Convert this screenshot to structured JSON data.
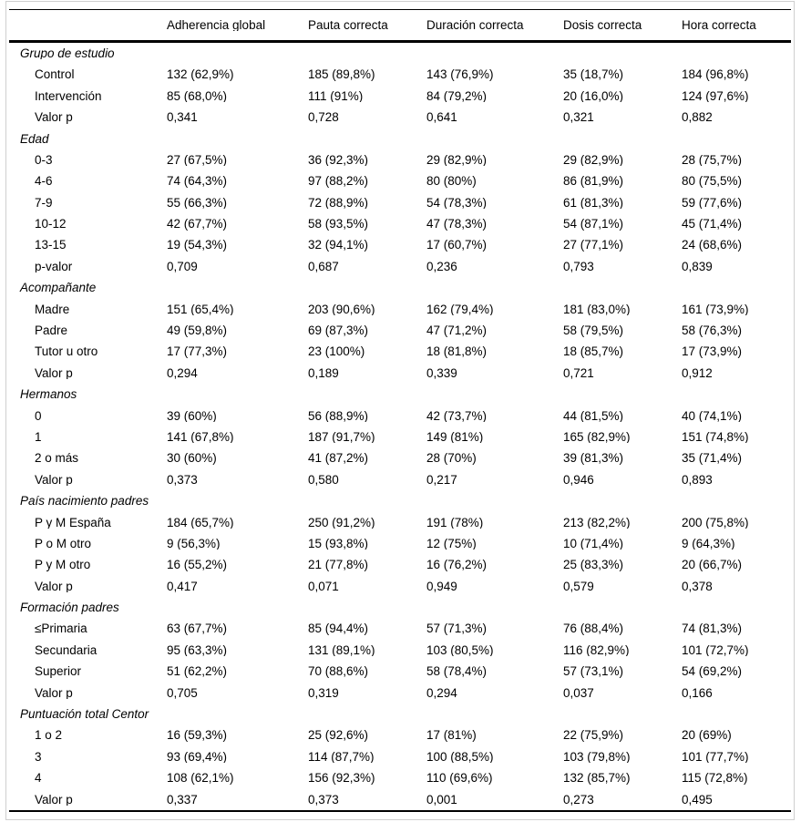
{
  "table": {
    "columns": [
      "",
      "Adherencia global",
      "Pauta correcta",
      "Duración correcta",
      "Dosis correcta",
      "Hora correcta"
    ],
    "sections": [
      {
        "title": "Grupo de estudio",
        "rows": [
          {
            "label": "Control",
            "cells": [
              "132 (62,9%)",
              "185 (89,8%)",
              "143 (76,9%)",
              "35 (18,7%)",
              "184 (96,8%)"
            ]
          },
          {
            "label": "Intervención",
            "cells": [
              "85 (68,0%)",
              "111 (91%)",
              "84 (79,2%)",
              "20 (16,0%)",
              "124 (97,6%)"
            ]
          },
          {
            "label": "Valor p",
            "cells": [
              "0,341",
              "0,728",
              "0,641",
              "0,321",
              "0,882"
            ]
          }
        ]
      },
      {
        "title": "Edad",
        "rows": [
          {
            "label": "0-3",
            "cells": [
              "27 (67,5%)",
              "36 (92,3%)",
              "29 (82,9%)",
              "29 (82,9%)",
              "28 (75,7%)"
            ]
          },
          {
            "label": "4-6",
            "cells": [
              "74 (64,3%)",
              "97 (88,2%)",
              "80 (80%)",
              "86 (81,9%)",
              "80 (75,5%)"
            ]
          },
          {
            "label": "7-9",
            "cells": [
              "55 (66,3%)",
              "72 (88,9%)",
              "54 (78,3%)",
              "61 (81,3%)",
              "59 (77,6%)"
            ]
          },
          {
            "label": "10-12",
            "cells": [
              "42 (67,7%)",
              "58 (93,5%)",
              "47 (78,3%)",
              "54 (87,1%)",
              "45 (71,4%)"
            ]
          },
          {
            "label": "13-15",
            "cells": [
              "19 (54,3%)",
              "32 (94,1%)",
              "17 (60,7%)",
              "27 (77,1%)",
              "24 (68,6%)"
            ]
          },
          {
            "label": "p-valor",
            "cells": [
              "0,709",
              "0,687",
              "0,236",
              "0,793",
              "0,839"
            ]
          }
        ]
      },
      {
        "title": "Acompañante",
        "rows": [
          {
            "label": "Madre",
            "cells": [
              "151 (65,4%)",
              "203 (90,6%)",
              "162 (79,4%)",
              "181 (83,0%)",
              "161 (73,9%)"
            ]
          },
          {
            "label": "Padre",
            "cells": [
              "49 (59,8%)",
              "69 (87,3%)",
              "47 (71,2%)",
              "58 (79,5%)",
              "58 (76,3%)"
            ]
          },
          {
            "label": "Tutor u otro",
            "cells": [
              "17 (77,3%)",
              "23 (100%)",
              "18 (81,8%)",
              "18 (85,7%)",
              "17 (73,9%)"
            ]
          },
          {
            "label": "Valor p",
            "cells": [
              "0,294",
              "0,189",
              "0,339",
              "0,721",
              "0,912"
            ]
          }
        ]
      },
      {
        "title": "Hermanos",
        "rows": [
          {
            "label": "0",
            "cells": [
              "39 (60%)",
              "56 (88,9%)",
              "42 (73,7%)",
              "44 (81,5%)",
              "40 (74,1%)"
            ]
          },
          {
            "label": "1",
            "cells": [
              "141 (67,8%)",
              "187 (91,7%)",
              "149 (81%)",
              "165 (82,9%)",
              "151 (74,8%)"
            ]
          },
          {
            "label": "2 o más",
            "cells": [
              "30 (60%)",
              "41 (87,2%)",
              "28 (70%)",
              "39 (81,3%)",
              "35 (71,4%)"
            ]
          },
          {
            "label": "Valor p",
            "cells": [
              "0,373",
              "0,580",
              "0,217",
              "0,946",
              "0,893"
            ]
          }
        ]
      },
      {
        "title": "País nacimiento padres",
        "rows": [
          {
            "label": "P y M España",
            "cells": [
              "184 (65,7%)",
              "250 (91,2%)",
              "191 (78%)",
              "213 (82,2%)",
              "200 (75,8%)"
            ]
          },
          {
            "label": "P o M otro",
            "cells": [
              "9 (56,3%)",
              "15 (93,8%)",
              "12 (75%)",
              "10 (71,4%)",
              "9 (64,3%)"
            ]
          },
          {
            "label": "P y M otro",
            "cells": [
              "16 (55,2%)",
              "21 (77,8%)",
              "16 (76,2%)",
              "25 (83,3%)",
              "20 (66,7%)"
            ]
          },
          {
            "label": "Valor p",
            "cells": [
              "0,417",
              "0,071",
              "0,949",
              "0,579",
              "0,378"
            ]
          }
        ]
      },
      {
        "title": "Formación padres",
        "rows": [
          {
            "label": "≤Primaria",
            "cells": [
              "63 (67,7%)",
              "85 (94,4%)",
              "57 (71,3%)",
              "76 (88,4%)",
              "74 (81,3%)"
            ]
          },
          {
            "label": "Secundaria",
            "cells": [
              "95 (63,3%)",
              "131 (89,1%)",
              "103 (80,5%)",
              "116 (82,9%)",
              "101 (72,7%)"
            ]
          },
          {
            "label": "Superior",
            "cells": [
              "51 (62,2%)",
              "70 (88,6%)",
              "58 (78,4%)",
              "57 (73,1%)",
              "54 (69,2%)"
            ]
          },
          {
            "label": "Valor p",
            "cells": [
              "0,705",
              "0,319",
              "0,294",
              "0,037",
              "0,166"
            ]
          }
        ]
      },
      {
        "title": "Puntuación total Centor",
        "rows": [
          {
            "label": "1 o 2",
            "cells": [
              "16 (59,3%)",
              "25 (92,6%)",
              "17 (81%)",
              "22 (75,9%)",
              "20 (69%)"
            ]
          },
          {
            "label": "3",
            "cells": [
              "93 (69,4%)",
              "114 (87,7%)",
              "100 (88,5%)",
              "103 (79,8%)",
              "101 (77,7%)"
            ]
          },
          {
            "label": "4",
            "cells": [
              "108 (62,1%)",
              "156 (92,3%)",
              "110 (69,6%)",
              "132 (85,7%)",
              "115 (72,8%)"
            ]
          },
          {
            "label": "Valor p",
            "cells": [
              "0,337",
              "0,373",
              "0,001",
              "0,273",
              "0,495"
            ]
          }
        ]
      }
    ]
  }
}
